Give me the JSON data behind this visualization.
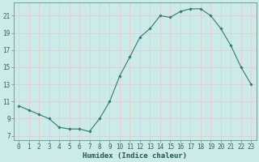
{
  "x": [
    0,
    1,
    2,
    3,
    4,
    5,
    6,
    7,
    8,
    9,
    10,
    11,
    12,
    13,
    14,
    15,
    16,
    17,
    18,
    19,
    20,
    21,
    22,
    23
  ],
  "y": [
    10.5,
    10.0,
    9.5,
    9.0,
    8.0,
    7.8,
    7.8,
    7.5,
    9.0,
    11.0,
    14.0,
    16.2,
    18.5,
    19.5,
    21.0,
    20.8,
    21.5,
    21.8,
    21.8,
    21.0,
    19.5,
    17.5,
    15.0,
    13.0
  ],
  "line_color": "#2e7d6e",
  "marker": "D",
  "marker_size": 1.8,
  "background_color": "#cceae7",
  "grid_color": "#b0d8d4",
  "xlabel": "Humidex (Indice chaleur)",
  "xlim": [
    -0.5,
    23.5
  ],
  "ylim": [
    6.5,
    22.5
  ],
  "yticks": [
    7,
    9,
    11,
    13,
    15,
    17,
    19,
    21
  ],
  "xticks": [
    0,
    1,
    2,
    3,
    4,
    5,
    6,
    7,
    8,
    9,
    10,
    11,
    12,
    13,
    14,
    15,
    16,
    17,
    18,
    19,
    20,
    21,
    22,
    23
  ],
  "xtick_labels": [
    "0",
    "1",
    "2",
    "3",
    "4",
    "5",
    "6",
    "7",
    "8",
    "9",
    "10",
    "11",
    "12",
    "13",
    "14",
    "15",
    "16",
    "17",
    "18",
    "19",
    "20",
    "21",
    "22",
    "23"
  ],
  "tick_fontsize": 5.5,
  "xlabel_fontsize": 6.5
}
